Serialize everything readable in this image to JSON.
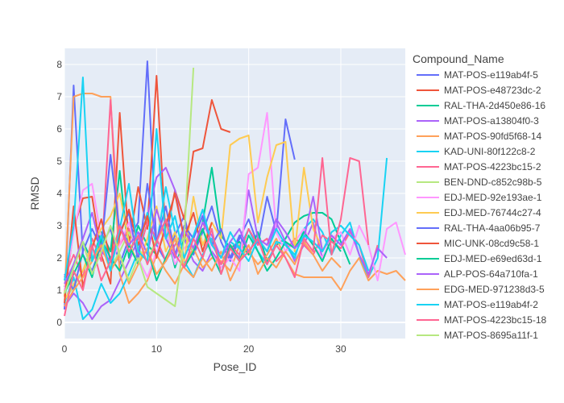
{
  "chart_data": {
    "type": "line",
    "title": "",
    "xlabel": "Pose_ID",
    "ylabel": "RMSD",
    "xlim": [
      0,
      37
    ],
    "ylim": [
      -0.5,
      8.5
    ],
    "x_ticks": [
      0,
      10,
      20,
      30
    ],
    "y_ticks": [
      0,
      1,
      2,
      3,
      4,
      5,
      6,
      7,
      8
    ],
    "grid": true,
    "plot_background": "#e5ecf6",
    "legend": {
      "title": "Compound_Name",
      "placement": "right"
    },
    "series": [
      {
        "name": "MAT-POS-e119ab4f-5",
        "color": "#636efa",
        "x": [
          0,
          1,
          2,
          3,
          4,
          5,
          6,
          7,
          8,
          9,
          10,
          11,
          12,
          13,
          14,
          15,
          16,
          17,
          18,
          19,
          20,
          21,
          22,
          23,
          24,
          25
        ],
        "y": [
          0.4,
          7.35,
          2.1,
          1.6,
          2.4,
          2.9,
          1.8,
          2.6,
          3.1,
          8.1,
          2.4,
          1.9,
          2.7,
          3.3,
          2.1,
          2.8,
          3.6,
          2.5,
          1.9,
          2.6,
          3.2,
          2.4,
          3.9,
          2.8,
          6.3,
          5.05
        ]
      },
      {
        "name": "MAT-POS-e48723dc-2",
        "color": "#ef553b",
        "x": [
          0,
          1,
          2,
          3,
          4,
          5,
          6,
          7,
          8,
          9,
          10,
          11,
          12,
          13,
          14,
          15,
          16,
          17,
          18
        ],
        "y": [
          0.8,
          2.9,
          3.85,
          3.9,
          2.1,
          1.2,
          6.5,
          2.4,
          4.2,
          2.9,
          7.65,
          2.6,
          4.1,
          3.2,
          5.3,
          5.4,
          6.9,
          6.0,
          5.9
        ]
      },
      {
        "name": "RAL-THA-2d450e86-16",
        "color": "#00cc96",
        "x": [
          0,
          1,
          2,
          3,
          4,
          5,
          6,
          7,
          8,
          9,
          10,
          11,
          12,
          13,
          14,
          15,
          16,
          17,
          18,
          19,
          20,
          21,
          22,
          23,
          24,
          25,
          26,
          27,
          28,
          29,
          30,
          31
        ],
        "y": [
          1.1,
          1.8,
          2.5,
          1.9,
          2.8,
          2.2,
          4.7,
          2.0,
          3.0,
          2.4,
          2.1,
          2.9,
          1.7,
          2.6,
          2.2,
          3.1,
          4.8,
          2.7,
          2.3,
          2.5,
          2.1,
          2.8,
          1.9,
          2.4,
          2.6,
          3.1,
          3.3,
          3.4,
          3.4,
          3.2,
          2.5,
          1.8
        ]
      },
      {
        "name": "MAT-POS-a13804f0-3",
        "color": "#ab63fa",
        "x": [
          0,
          1,
          2,
          3,
          4,
          5,
          6,
          7,
          8,
          9,
          10,
          11,
          12,
          13,
          14,
          15,
          16,
          17,
          18,
          19,
          20,
          21,
          22,
          23,
          24,
          25,
          26,
          27,
          28
        ],
        "y": [
          0.5,
          0.9,
          0.6,
          0.1,
          0.5,
          0.7,
          1.3,
          1.9,
          2.6,
          3.3,
          4.5,
          4.8,
          4.1,
          2.6,
          1.9,
          1.6,
          2.2,
          1.8,
          2.3,
          2.0,
          4.1,
          2.6,
          2.2,
          3.1,
          2.5,
          1.9,
          2.4,
          3.1,
          2.0
        ]
      },
      {
        "name": "MAT-POS-90fd5f68-14",
        "color": "#ffa15a",
        "x": [
          0,
          1,
          2,
          3,
          4,
          5,
          6,
          7,
          8,
          9,
          10,
          11,
          12,
          13,
          14,
          15,
          16,
          17,
          18,
          19,
          20,
          21,
          22,
          23,
          24,
          25,
          26,
          27,
          28,
          29,
          30,
          31,
          32,
          33,
          34,
          35,
          36,
          37
        ],
        "y": [
          0.8,
          7.0,
          7.1,
          7.1,
          7.0,
          7.0,
          1.5,
          0.6,
          0.9,
          1.3,
          2.1,
          1.6,
          1.2,
          1.8,
          2.3,
          1.7,
          2.0,
          1.9,
          1.6,
          2.4,
          2.2,
          1.8,
          2.1,
          2.6,
          2.0,
          1.5,
          1.4,
          1.4,
          1.4,
          1.4,
          1.0,
          1.6,
          2.0,
          1.3,
          1.6,
          1.5,
          1.6,
          1.3
        ]
      },
      {
        "name": "KAD-UNI-80f122c8-2",
        "color": "#19d3f3",
        "x": [
          0,
          1,
          2,
          3,
          4,
          5,
          6,
          7,
          8,
          9,
          10,
          11,
          12,
          13,
          14,
          15,
          16,
          17,
          18,
          19,
          20,
          21,
          22,
          23,
          24,
          25,
          26,
          27,
          28,
          29,
          30,
          31,
          32,
          33,
          34,
          35
        ],
        "y": [
          0.6,
          1.4,
          0.1,
          0.4,
          1.2,
          0.6,
          0.9,
          1.5,
          2.2,
          3.4,
          2.4,
          4.2,
          2.8,
          1.9,
          1.4,
          2.1,
          2.6,
          2.0,
          2.5,
          2.3,
          2.9,
          2.2,
          1.8,
          2.5,
          2.4,
          2.0,
          2.9,
          3.2,
          2.8,
          2.1,
          2.7,
          3.1,
          2.1,
          1.4,
          2.0,
          5.1
        ]
      },
      {
        "name": "MAT-POS-4223bc15-2",
        "color": "#ff6692",
        "x": [
          0,
          1,
          2,
          3,
          4,
          5,
          6,
          7,
          8,
          9,
          10,
          11,
          12,
          13,
          14,
          15,
          16,
          17,
          18,
          19,
          20,
          21,
          22,
          23,
          24,
          25,
          26,
          27,
          28,
          29,
          30,
          31,
          32,
          33,
          34
        ],
        "y": [
          1.4,
          2.1,
          1.4,
          2.6,
          1.9,
          6.9,
          2.4,
          2.9,
          2.1,
          3.1,
          2.6,
          1.9,
          2.4,
          2.9,
          2.2,
          3.1,
          2.5,
          1.8,
          2.4,
          2.1,
          2.9,
          2.4,
          2.6,
          1.9,
          2.2,
          2.6,
          2.4,
          2.1,
          2.7,
          2.5,
          2.3,
          2.8,
          2.4,
          1.4,
          2.4
        ]
      },
      {
        "name": "BEN-DND-c852c98b-5",
        "color": "#b6e880",
        "x": [
          0,
          1,
          2,
          3,
          4,
          5,
          6,
          7,
          8,
          9,
          10,
          11,
          12,
          13,
          14
        ],
        "y": [
          0.7,
          1.1,
          1.6,
          2.0,
          2.5,
          1.7,
          2.2,
          2.8,
          2.3,
          1.9,
          2.6,
          3.0,
          2.1,
          2.7,
          2.2
        ]
      },
      {
        "name": "EDJ-MED-92e193ae-1",
        "color": "#ff97ff",
        "x": [
          0,
          1,
          2,
          3,
          4,
          5,
          6,
          7,
          8,
          9,
          10,
          11,
          12,
          13,
          14,
          15,
          16,
          17,
          18,
          19,
          20,
          21,
          22,
          23,
          24,
          25,
          26,
          27,
          28,
          29,
          30,
          31,
          32,
          33,
          34,
          35,
          36,
          37
        ],
        "y": [
          1.0,
          2.8,
          4.1,
          4.3,
          2.6,
          1.9,
          2.4,
          3.1,
          2.0,
          1.4,
          2.2,
          2.9,
          1.8,
          2.3,
          2.6,
          3.4,
          2.1,
          1.7,
          2.0,
          1.6,
          4.6,
          4.8,
          6.5,
          2.8,
          2.2,
          2.5,
          2.9,
          2.4,
          2.0,
          2.6,
          2.8,
          2.1,
          3.0,
          2.4,
          1.3,
          2.9,
          3.1,
          2.1
        ]
      },
      {
        "name": "EDJ-MED-76744c27-4",
        "color": "#fecb52",
        "x": [
          0,
          1,
          2,
          3,
          4,
          5,
          6,
          7,
          8,
          9,
          10,
          11,
          12,
          13,
          14,
          15,
          16,
          17,
          18,
          19,
          20,
          21,
          22,
          23,
          24,
          25,
          26,
          27,
          28
        ],
        "y": [
          0.7,
          1.2,
          1.6,
          2.4,
          2.9,
          3.3,
          4.0,
          2.5,
          1.8,
          2.6,
          3.6,
          2.2,
          2.8,
          1.9,
          3.9,
          2.4,
          3.1,
          2.6,
          5.5,
          5.7,
          5.8,
          3.1,
          4.5,
          5.5,
          5.6,
          2.2,
          4.8,
          2.9,
          2.3
        ]
      },
      {
        "name": "RAL-THA-4aa06b95-7",
        "color": "#636efa",
        "x": [
          0,
          1,
          2,
          3,
          4,
          5,
          6,
          7,
          8,
          9,
          10,
          11,
          12,
          13,
          14,
          15,
          16,
          17,
          18,
          19,
          20
        ],
        "y": [
          1.5,
          1.0,
          2.2,
          2.9,
          2.3,
          5.2,
          2.8,
          3.4,
          1.9,
          4.3,
          2.5,
          3.6,
          2.1,
          3.0,
          2.6,
          3.3,
          2.4,
          2.9,
          2.0,
          2.7,
          2.2
        ]
      },
      {
        "name": "MIC-UNK-08cd9c58-1",
        "color": "#ef553b",
        "x": [
          0,
          1,
          2,
          3,
          4,
          5,
          6,
          7,
          8,
          9,
          10,
          11,
          12,
          13,
          14,
          15,
          16
        ],
        "y": [
          0.6,
          3.6,
          1.1,
          2.3,
          3.2,
          1.9,
          2.7,
          3.5,
          2.4,
          3.3,
          2.0,
          3.0,
          4.0,
          2.6,
          3.4,
          2.2,
          3.1
        ]
      },
      {
        "name": "EDJ-MED-e69ed63d-1",
        "color": "#00cc96",
        "x": [
          0,
          1,
          2,
          3,
          4,
          5,
          6,
          7,
          8,
          9,
          10,
          11,
          12,
          13,
          14,
          15,
          16,
          17,
          18,
          19,
          20,
          21,
          22,
          23,
          24,
          25,
          26,
          27,
          28,
          29,
          30
        ],
        "y": [
          0.9,
          1.5,
          2.1,
          1.4,
          2.6,
          2.0,
          1.6,
          2.4,
          1.8,
          2.3,
          1.3,
          2.0,
          2.6,
          1.7,
          2.2,
          2.9,
          2.1,
          1.5,
          2.4,
          1.9,
          2.7,
          2.2,
          1.6,
          2.0,
          2.5,
          2.3,
          2.8,
          2.4,
          1.9,
          2.6,
          2.2
        ]
      },
      {
        "name": "ALP-POS-64a710fa-1",
        "color": "#ab63fa",
        "x": [
          0,
          1,
          2,
          3,
          4,
          5,
          6,
          7,
          8,
          9,
          10,
          11,
          12,
          13,
          14,
          15,
          16,
          17,
          18,
          19,
          20,
          21,
          22,
          23,
          24,
          25,
          26,
          27,
          28,
          29,
          30,
          31,
          32,
          33,
          34,
          35
        ],
        "y": [
          1.2,
          1.8,
          2.6,
          3.4,
          2.2,
          1.9,
          3.0,
          2.4,
          2.8,
          2.1,
          3.5,
          2.6,
          2.0,
          2.9,
          2.3,
          3.1,
          2.7,
          2.0,
          2.5,
          2.9,
          2.2,
          2.6,
          2.4,
          3.2,
          2.8,
          2.3,
          2.6,
          3.9,
          2.2,
          2.7,
          2.4,
          2.9,
          2.1,
          1.5,
          2.3,
          2.0
        ]
      },
      {
        "name": "EDG-MED-971238d3-5",
        "color": "#ffa15a",
        "x": [
          0,
          1,
          2,
          3,
          4,
          5,
          6,
          7,
          8,
          9,
          10,
          11,
          12,
          13,
          14,
          15,
          16,
          17,
          18,
          19,
          20,
          21,
          22,
          23,
          24,
          25,
          26,
          27,
          28,
          29,
          30
        ],
        "y": [
          0.5,
          1.0,
          1.4,
          1.9,
          2.4,
          1.6,
          2.1,
          1.2,
          1.8,
          2.3,
          1.5,
          1.9,
          2.6,
          1.7,
          1.4,
          2.0,
          1.6,
          2.2,
          1.3,
          1.9,
          2.4,
          1.5,
          2.0,
          1.7,
          2.2,
          1.8,
          2.5,
          2.1,
          1.6,
          2.0,
          1.7
        ]
      },
      {
        "name": "MAT-POS-e119ab4f-2",
        "color": "#19d3f3",
        "x": [
          0,
          1,
          2,
          3,
          4,
          5,
          6,
          7,
          8,
          9,
          10,
          11,
          12,
          13,
          14,
          15,
          16,
          17,
          18,
          19,
          20,
          21,
          22,
          23,
          24,
          25,
          26,
          27,
          28,
          29,
          30,
          31,
          32,
          33
        ],
        "y": [
          1.3,
          3.0,
          7.6,
          1.9,
          2.7,
          1.6,
          2.9,
          4.3,
          2.2,
          1.9,
          6.0,
          2.6,
          3.3,
          2.0,
          2.7,
          3.5,
          2.4,
          2.0,
          2.8,
          2.3,
          1.9,
          2.6,
          2.2,
          2.9,
          2.4,
          2.1,
          2.7,
          2.5,
          2.2,
          2.8,
          3.0,
          2.7,
          2.4,
          1.6
        ]
      },
      {
        "name": "MAT-POS-4223bc15-18",
        "color": "#ff6692",
        "x": [
          0,
          1,
          2,
          3,
          4,
          5,
          6,
          7,
          8,
          9,
          10,
          11,
          12,
          13,
          14,
          15,
          16,
          17,
          18,
          19,
          20,
          21,
          22,
          23,
          24,
          25,
          26,
          27,
          28,
          29,
          30,
          31,
          32,
          33
        ],
        "y": [
          0.2,
          1.6,
          1.0,
          2.4,
          1.3,
          1.9,
          3.0,
          2.2,
          2.7,
          1.8,
          2.5,
          3.2,
          2.1,
          1.7,
          2.6,
          2.0,
          2.9,
          1.5,
          2.3,
          1.9,
          2.2,
          2.6,
          1.8,
          2.4,
          2.0,
          1.4,
          2.6,
          2.2,
          5.1,
          2.1,
          3.2,
          5.1,
          5.0,
          2.4
        ]
      },
      {
        "name": "MAT-POS-8695a11f-1",
        "color": "#b6e880",
        "x": [
          0,
          1,
          2,
          3,
          4,
          5,
          6,
          7,
          8,
          9,
          10,
          11,
          12,
          13,
          14
        ],
        "y": [
          0.9,
          1.7,
          2.5,
          1.5,
          2.2,
          3.0,
          2.1,
          1.3,
          2.0,
          1.1,
          0.9,
          0.7,
          0.5,
          2.6,
          7.9
        ]
      }
    ]
  }
}
